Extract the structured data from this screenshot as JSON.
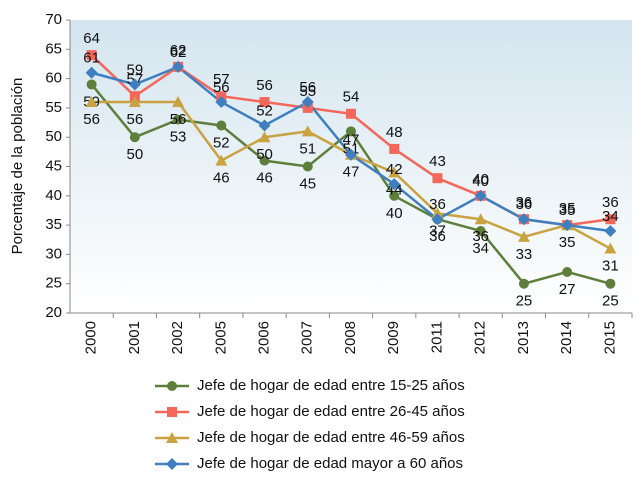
{
  "chart_data": {
    "type": "line",
    "ylabel": "Porcentaje de la población",
    "categories": [
      "2000",
      "2001",
      "2002",
      "2005",
      "2006",
      "2007",
      "2008",
      "2009",
      "2011",
      "2012",
      "2013",
      "2014",
      "2015"
    ],
    "ylim": [
      20,
      70
    ],
    "yticks": [
      20,
      25,
      30,
      35,
      40,
      45,
      50,
      55,
      60,
      65,
      70
    ],
    "series": [
      {
        "name": "Jefe de hogar de edad entre 15-25 años",
        "color": "#5e7f3c",
        "marker": "circle",
        "values": [
          59,
          50,
          53,
          52,
          46,
          45,
          51,
          40,
          36,
          34,
          25,
          27,
          25
        ]
      },
      {
        "name": "Jefe de hogar de edad entre 26-45 años",
        "color": "#f4675a",
        "marker": "square",
        "values": [
          64,
          57,
          62,
          57,
          56,
          55,
          54,
          48,
          43,
          40,
          36,
          35,
          36
        ]
      },
      {
        "name": "Jefe de hogar de edad entre 46-59 años",
        "color": "#c9a342",
        "marker": "triangle",
        "values": [
          56,
          56,
          56,
          46,
          50,
          51,
          47,
          44,
          37,
          36,
          33,
          35,
          31
        ]
      },
      {
        "name": "Jefe de hogar de edad mayor a 60 años",
        "color": "#3f7fc0",
        "marker": "diamond",
        "values": [
          61,
          59,
          62,
          56,
          52,
          56,
          47,
          42,
          36,
          40,
          36,
          35,
          34
        ]
      }
    ]
  }
}
